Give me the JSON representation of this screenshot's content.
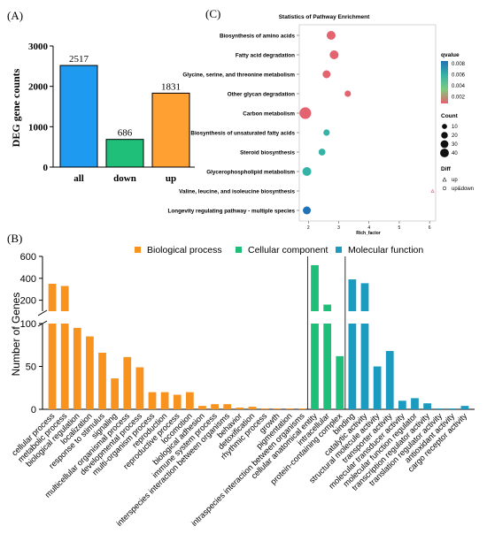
{
  "panels": {
    "a": {
      "label": "(A)"
    },
    "b": {
      "label": "(B)"
    },
    "c": {
      "label": "(C)"
    }
  },
  "chart_data": [
    {
      "panel": "A",
      "type": "bar",
      "title": "",
      "xlabel": "",
      "ylabel": "DEG gene counts",
      "categories": [
        "all",
        "down",
        "up"
      ],
      "values": [
        2517,
        686,
        1831
      ],
      "colors": [
        "#1e9bf0",
        "#1fbf7a",
        "#ffa033"
      ],
      "ylim": [
        0,
        3000
      ],
      "yticks": [
        0,
        1000,
        2000,
        3000
      ],
      "value_labels": [
        "2517",
        "686",
        "1831"
      ]
    },
    {
      "panel": "C",
      "type": "scatter",
      "title": "Statistics of Pathway Enrichment",
      "xlabel": "Rich_factor",
      "ylabel": "",
      "xlim": [
        1.7,
        6.2
      ],
      "xticks": [
        2,
        3,
        4,
        5,
        6
      ],
      "categories": [
        "Biosynthesis of amino acids",
        "Fatty acid degradation",
        "Glycine, serine, and threonine metabolism",
        "Other glycan degradation",
        "Carbon metabolism",
        "Biosynthesis of unsaturated fatty acids",
        "Steroid biosynthesis",
        "Glycerophospholipid metabolism",
        "Valine, leucine, and isoleucine biosynthesis",
        "Longevity regulating pathway - multiple species"
      ],
      "points": [
        {
          "x": 2.75,
          "count": 20,
          "qvalue": 0.001,
          "diff": "up&down"
        },
        {
          "x": 2.85,
          "count": 20,
          "qvalue": 0.001,
          "diff": "up&down"
        },
        {
          "x": 2.6,
          "count": 15,
          "qvalue": 0.0012,
          "diff": "up&down"
        },
        {
          "x": 3.3,
          "count": 8,
          "qvalue": 0.001,
          "diff": "up&down"
        },
        {
          "x": 1.9,
          "count": 40,
          "qvalue": 0.001,
          "diff": "up&down"
        },
        {
          "x": 2.6,
          "count": 8,
          "qvalue": 0.005,
          "diff": "up&down"
        },
        {
          "x": 2.45,
          "count": 10,
          "qvalue": 0.005,
          "diff": "up&down"
        },
        {
          "x": 1.95,
          "count": 20,
          "qvalue": 0.006,
          "diff": "up&down"
        },
        {
          "x": 6.1,
          "count": 2,
          "qvalue": 0.008,
          "diff": "up"
        },
        {
          "x": 1.95,
          "count": 15,
          "qvalue": 0.008,
          "diff": "up&down"
        }
      ],
      "legend": {
        "qvalue_title": "qvalue",
        "qvalue_ticks": [
          "0.008",
          "0.006",
          "0.004",
          "0.002"
        ],
        "qvalue_colors": [
          "#2171b5",
          "#35b3a5",
          "#7fc97f",
          "#e3636f"
        ],
        "count_title": "Count",
        "count_ticks": [
          "10",
          "20",
          "30",
          "40"
        ],
        "diff_title": "Diff",
        "diff_items": [
          "up",
          "up&down"
        ]
      }
    },
    {
      "panel": "B",
      "type": "bar",
      "title": "",
      "xlabel": "",
      "ylabel": "Number of Genes",
      "axis_break": {
        "lower": [
          0,
          100
        ],
        "upper": [
          100,
          600
        ]
      },
      "yticks_lower": [
        "0",
        "50",
        "100"
      ],
      "yticks_upper": [
        "200",
        "400",
        "600"
      ],
      "series": [
        {
          "name": "Biological process",
          "color": "#f7931e"
        },
        {
          "name": "Cellular component",
          "color": "#1fbf7a"
        },
        {
          "name": "Molecular function",
          "color": "#1a9bbf"
        }
      ],
      "categories": [
        "cellular process",
        "metabolic process",
        "biological regulation",
        "localization",
        "response to stimulus",
        "signaling",
        "multicellular organismal process",
        "developmental process",
        "multi-organism process",
        "reproduction",
        "reproductive process",
        "locomotion",
        "biological adhesion",
        "immune system process",
        "interspecies interaction between organisms",
        "behavior",
        "detoxification",
        "rhythmic process",
        "growth",
        "pigmentation",
        "intraspecies interaction between organisms",
        "cellular anatomical entity",
        "intracellular",
        "protein-containing complex",
        "binding",
        "catalytic activity",
        "structural molecule activity",
        "transporter activity",
        "molecular transducer activity",
        "molecular function regulator",
        "transcription regulator activity",
        "translation regulator activity",
        "antioxidant activity",
        "cargo receptor activity"
      ],
      "groups": [
        "Biological process",
        "Biological process",
        "Biological process",
        "Biological process",
        "Biological process",
        "Biological process",
        "Biological process",
        "Biological process",
        "Biological process",
        "Biological process",
        "Biological process",
        "Biological process",
        "Biological process",
        "Biological process",
        "Biological process",
        "Biological process",
        "Biological process",
        "Biological process",
        "Biological process",
        "Biological process",
        "Biological process",
        "Cellular component",
        "Cellular component",
        "Cellular component",
        "Molecular function",
        "Molecular function",
        "Molecular function",
        "Molecular function",
        "Molecular function",
        "Molecular function",
        "Molecular function",
        "Molecular function",
        "Molecular function",
        "Molecular function"
      ],
      "values": [
        350,
        330,
        95,
        85,
        66,
        36,
        61,
        49,
        20,
        20,
        17,
        20,
        4,
        6,
        6,
        2,
        3,
        1,
        1,
        1,
        1,
        520,
        160,
        62,
        390,
        355,
        50,
        68,
        10,
        13,
        7,
        1,
        1,
        4
      ]
    }
  ]
}
